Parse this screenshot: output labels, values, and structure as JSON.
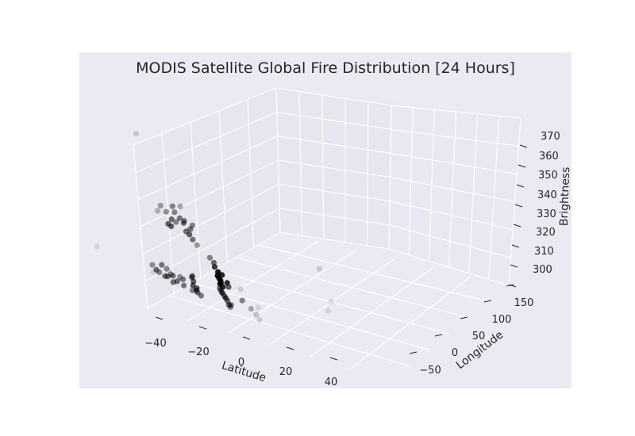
{
  "chart_data": {
    "type": "scatter",
    "title": "MODIS Satellite Global Fire Distribution [24 Hours]",
    "xlabel": "Latitude",
    "ylabel": "Longitude",
    "zlabel": "Brightness",
    "xlim": [
      -50,
      50
    ],
    "ylim": [
      -80,
      180
    ],
    "zlim": [
      290,
      375
    ],
    "x_ticks": [
      "−40",
      "−20",
      "0",
      "20",
      "40"
    ],
    "y_ticks": [
      "−50",
      "0",
      "50",
      "100",
      "150"
    ],
    "z_ticks": [
      "300",
      "310",
      "320",
      "330",
      "340",
      "350",
      "360",
      "370"
    ],
    "grid": true,
    "colors": {
      "background": "#eaeaf2",
      "grid": "#ffffff",
      "text": "#262626",
      "points": "#000000"
    },
    "points": [
      [
        -26,
        28,
        372,
        0.15
      ],
      [
        -21,
        72,
        308,
        0.1
      ],
      [
        -46,
        48,
        308,
        0.1
      ],
      [
        -16,
        22,
        335,
        0.25
      ],
      [
        -14,
        18,
        338,
        0.35
      ],
      [
        -11,
        28,
        340,
        0.45
      ],
      [
        -13,
        25,
        336,
        0.4
      ],
      [
        -9,
        22,
        337,
        0.45
      ],
      [
        -8,
        28,
        335,
        0.5
      ],
      [
        -11,
        26,
        333,
        0.55
      ],
      [
        -12,
        24,
        330,
        0.6
      ],
      [
        -8,
        20,
        332,
        0.45
      ],
      [
        -6,
        26,
        333,
        0.55
      ],
      [
        -5,
        22,
        334,
        0.5
      ],
      [
        -4,
        30,
        331,
        0.55
      ],
      [
        -10,
        20,
        329,
        0.6
      ],
      [
        -4,
        28,
        328,
        0.6
      ],
      [
        -3,
        30,
        326,
        0.5
      ],
      [
        -5,
        26,
        329,
        0.55
      ],
      [
        -2,
        24,
        333,
        0.45
      ],
      [
        -7,
        24,
        341,
        0.3
      ],
      [
        -20,
        34,
        303,
        0.1
      ],
      [
        -12,
        10,
        307,
        0.5
      ],
      [
        -10,
        12,
        302,
        0.55
      ],
      [
        -8,
        14,
        300,
        0.55
      ],
      [
        -6,
        12,
        301,
        0.55
      ],
      [
        -4,
        16,
        300,
        0.5
      ],
      [
        -7,
        8,
        303,
        0.5
      ],
      [
        -6,
        18,
        304,
        0.4
      ],
      [
        -4,
        14,
        303,
        0.5
      ],
      [
        6,
        -8,
        322,
        0.35
      ],
      [
        9,
        4,
        318,
        0.45
      ],
      [
        11,
        2,
        316,
        0.55
      ],
      [
        11,
        4,
        314,
        0.75
      ],
      [
        12,
        6,
        312,
        0.9
      ],
      [
        12,
        5,
        310,
        0.9
      ],
      [
        13,
        6,
        308,
        0.9
      ],
      [
        13,
        5,
        306,
        0.85
      ],
      [
        14,
        6,
        305,
        0.85
      ],
      [
        12,
        8,
        309,
        0.8
      ],
      [
        14,
        4,
        311,
        0.85
      ],
      [
        13,
        7,
        307,
        0.95
      ],
      [
        15,
        10,
        308,
        0.8
      ],
      [
        16,
        8,
        306,
        0.6
      ],
      [
        12,
        10,
        304,
        0.6
      ],
      [
        -12,
        -2,
        303,
        0.55
      ],
      [
        -10,
        -6,
        302,
        0.45
      ],
      [
        -8,
        -4,
        301,
        0.5
      ],
      [
        -6,
        -2,
        303,
        0.45
      ],
      [
        -14,
        0,
        305,
        0.4
      ],
      [
        -7,
        -6,
        305,
        0.4
      ],
      [
        2,
        2,
        305,
        0.6
      ],
      [
        3,
        0,
        303,
        0.6
      ],
      [
        2,
        4,
        301,
        0.65
      ],
      [
        4,
        2,
        300,
        0.65
      ],
      [
        3,
        6,
        299,
        0.6
      ],
      [
        4,
        4,
        298,
        0.55
      ],
      [
        1,
        8,
        306,
        0.5
      ],
      [
        5,
        6,
        297,
        0.5
      ],
      [
        3,
        -2,
        298,
        0.45
      ],
      [
        13,
        14,
        301,
        0.55
      ],
      [
        12,
        12,
        303,
        0.55
      ],
      [
        14,
        16,
        299,
        0.6
      ],
      [
        15,
        14,
        297,
        0.6
      ],
      [
        16,
        12,
        296,
        0.45
      ],
      [
        13,
        10,
        302,
        0.75
      ],
      [
        14,
        12,
        300,
        0.7
      ],
      [
        17,
        8,
        297,
        0.5
      ],
      [
        24,
        -8,
        306,
        0.15
      ],
      [
        22,
        6,
        301,
        0.45
      ],
      [
        26,
        4,
        298,
        0.3
      ],
      [
        27,
        10,
        296,
        0.2
      ],
      [
        28,
        12,
        294,
        0.15
      ],
      [
        34,
        130,
        315,
        0.1
      ],
      [
        36,
        126,
        320,
        0.1
      ],
      [
        28,
        142,
        336,
        0.15
      ],
      [
        24,
        30,
        301,
        0.1
      ]
    ]
  }
}
